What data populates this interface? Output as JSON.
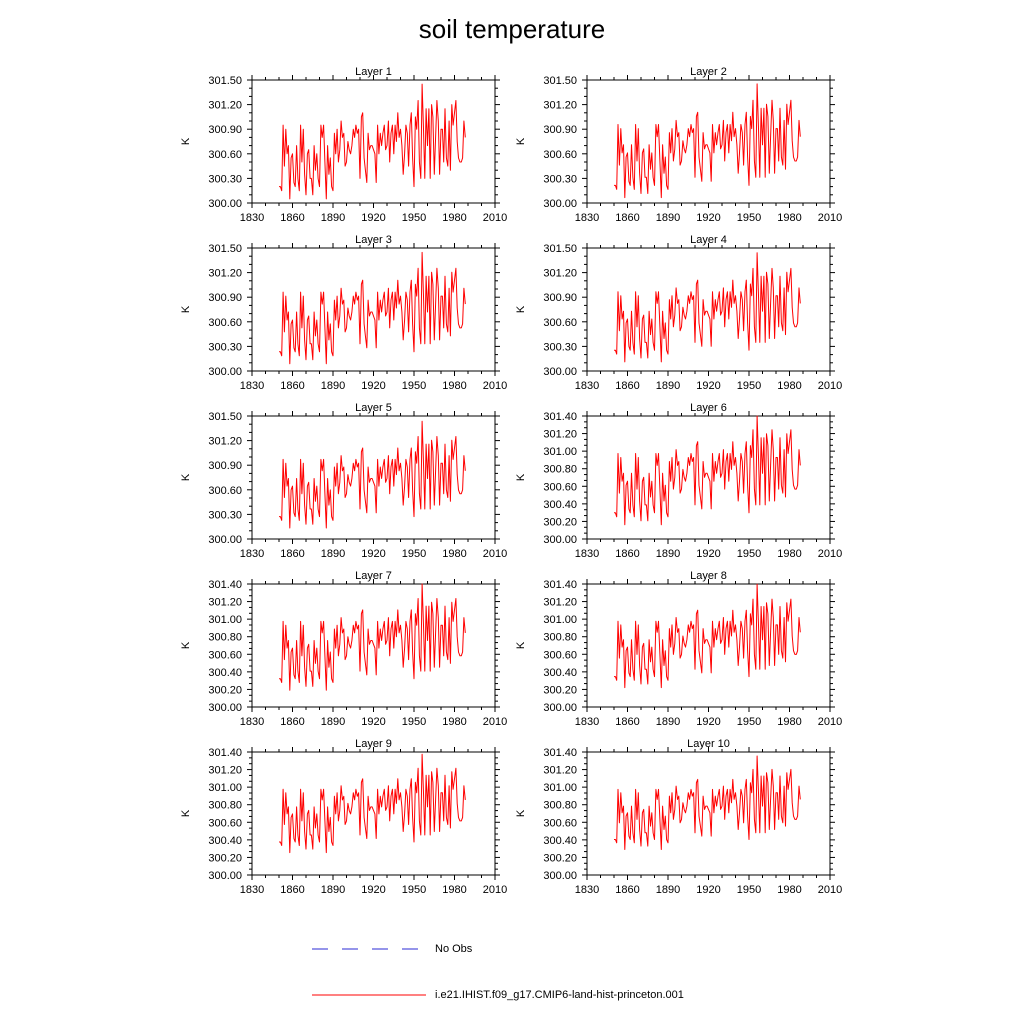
{
  "figure": {
    "title": "soil temperature",
    "legend": [
      {
        "label": "No Obs",
        "color": "#2b2bd6",
        "style": "dashed"
      },
      {
        "label": "i.e21.IHIST.f09_g17.CMIP6-land-hist-princeton.001",
        "color": "#ff0000",
        "style": "solid"
      }
    ]
  },
  "chart_data": {
    "type": "line",
    "x_ticks": [
      1830,
      1860,
      1890,
      1920,
      1950,
      1980,
      2010
    ],
    "xlim": [
      1830,
      2010
    ],
    "x": [
      1850,
      1851,
      1852,
      1853,
      1854,
      1855,
      1856,
      1857,
      1858,
      1859,
      1860,
      1861,
      1862,
      1863,
      1864,
      1865,
      1866,
      1867,
      1868,
      1869,
      1870,
      1871,
      1872,
      1873,
      1874,
      1875,
      1876,
      1877,
      1878,
      1879,
      1880,
      1881,
      1882,
      1883,
      1884,
      1885,
      1886,
      1887,
      1888,
      1889,
      1890,
      1891,
      1892,
      1893,
      1894,
      1895,
      1896,
      1897,
      1898,
      1899,
      1900,
      1901,
      1902,
      1903,
      1904,
      1905,
      1906,
      1907,
      1908,
      1909,
      1910,
      1911,
      1912,
      1913,
      1914,
      1915,
      1916,
      1917,
      1918,
      1919,
      1920,
      1921,
      1922,
      1923,
      1924,
      1925,
      1926,
      1927,
      1928,
      1929,
      1930,
      1931,
      1932,
      1933,
      1934,
      1935,
      1936,
      1937,
      1938,
      1939,
      1940,
      1941,
      1942,
      1943,
      1944,
      1945,
      1946,
      1947,
      1948,
      1949,
      1950,
      1951,
      1952,
      1953,
      1954,
      1955,
      1956,
      1957,
      1958,
      1959,
      1960,
      1961,
      1962,
      1963,
      1964,
      1965,
      1966,
      1967,
      1968,
      1969,
      1970,
      1971,
      1972,
      1973,
      1974,
      1975,
      1976,
      1977,
      1978,
      1979,
      1980,
      1981,
      1982,
      1983,
      1984,
      1985,
      1986,
      1987,
      1988
    ],
    "base": [
      300.2,
      300.2,
      300.15,
      300.95,
      300.45,
      300.9,
      300.6,
      300.7,
      300.05,
      300.55,
      300.6,
      300.25,
      300.2,
      300.7,
      300.3,
      300.15,
      300.95,
      300.5,
      300.9,
      300.35,
      300.1,
      300.6,
      300.65,
      300.3,
      300.3,
      300.1,
      300.7,
      300.4,
      300.6,
      300.3,
      300.2,
      300.95,
      300.8,
      300.95,
      300.5,
      300.05,
      300.7,
      300.35,
      300.55,
      300.2,
      300.15,
      300.85,
      300.6,
      300.9,
      300.5,
      300.65,
      301.0,
      300.8,
      300.85,
      300.45,
      300.5,
      300.75,
      300.65,
      300.6,
      300.7,
      300.9,
      300.8,
      300.95,
      300.85,
      300.9,
      300.3,
      301.05,
      301.1,
      300.55,
      300.4,
      300.25,
      300.85,
      300.65,
      300.7,
      300.7,
      300.65,
      300.6,
      300.25,
      300.95,
      300.6,
      300.85,
      300.7,
      300.85,
      300.95,
      300.65,
      300.7,
      301.0,
      300.5,
      300.85,
      300.95,
      300.6,
      300.95,
      300.75,
      301.1,
      300.8,
      300.9,
      300.7,
      300.35,
      300.6,
      300.95,
      300.85,
      300.45,
      300.95,
      301.1,
      300.55,
      300.2,
      301.05,
      300.9,
      301.25,
      300.5,
      300.3,
      301.45,
      300.9,
      300.3,
      301.15,
      300.7,
      301.15,
      300.3,
      301.2,
      301.05,
      300.35,
      300.8,
      301.25,
      301.0,
      300.35,
      300.9,
      300.9,
      300.5,
      301.15,
      300.55,
      300.45,
      301.0,
      300.4,
      301.2,
      300.95,
      301.1,
      301.25,
      300.75,
      300.55,
      300.5,
      300.5,
      300.55,
      301.0,
      300.8,
      301.25,
      300.5
    ],
    "subplots": [
      {
        "title": "Layer 1",
        "ylabel": "K",
        "ylim": [
          300.0,
          301.5
        ],
        "y_ticks": [
          "300.00",
          "300.30",
          "300.60",
          "300.90",
          "301.20",
          "301.50"
        ],
        "variability": 1.0,
        "trend": 0.0
      },
      {
        "title": "Layer 2",
        "ylabel": "K",
        "ylim": [
          300.0,
          301.5
        ],
        "y_ticks": [
          "300.00",
          "300.30",
          "300.60",
          "300.90",
          "301.20",
          "301.50"
        ],
        "variability": 0.99,
        "trend": 0.01
      },
      {
        "title": "Layer 3",
        "ylabel": "K",
        "ylim": [
          300.0,
          301.5
        ],
        "y_ticks": [
          "300.00",
          "300.30",
          "300.60",
          "300.90",
          "301.20",
          "301.50"
        ],
        "variability": 0.97,
        "trend": 0.02
      },
      {
        "title": "Layer 4",
        "ylabel": "K",
        "ylim": [
          300.0,
          301.5
        ],
        "y_ticks": [
          "300.00",
          "300.30",
          "300.60",
          "300.90",
          "301.20",
          "301.50"
        ],
        "variability": 0.95,
        "trend": 0.03
      },
      {
        "title": "Layer 5",
        "ylabel": "K",
        "ylim": [
          300.0,
          301.5
        ],
        "y_ticks": [
          "300.00",
          "300.30",
          "300.60",
          "300.90",
          "301.20",
          "301.50"
        ],
        "variability": 0.93,
        "trend": 0.04
      },
      {
        "title": "Layer 6",
        "ylabel": "K",
        "ylim": [
          300.0,
          301.4
        ],
        "y_ticks": [
          "300.00",
          "300.20",
          "300.40",
          "300.60",
          "300.80",
          "301.00",
          "301.20",
          "301.40"
        ],
        "variability": 0.9,
        "trend": 0.05
      },
      {
        "title": "Layer 7",
        "ylabel": "K",
        "ylim": [
          300.0,
          301.4
        ],
        "y_ticks": [
          "300.00",
          "300.20",
          "300.40",
          "300.60",
          "300.80",
          "301.00",
          "301.20",
          "301.40"
        ],
        "variability": 0.87,
        "trend": 0.06
      },
      {
        "title": "Layer 8",
        "ylabel": "K",
        "ylim": [
          300.0,
          301.4
        ],
        "y_ticks": [
          "300.00",
          "300.20",
          "300.40",
          "300.60",
          "300.80",
          "301.00",
          "301.20",
          "301.40"
        ],
        "variability": 0.84,
        "trend": 0.07
      },
      {
        "title": "Layer 9",
        "ylabel": "K",
        "ylim": [
          300.0,
          301.4
        ],
        "y_ticks": [
          "300.00",
          "300.20",
          "300.40",
          "300.60",
          "300.80",
          "301.00",
          "301.20",
          "301.40"
        ],
        "variability": 0.8,
        "trend": 0.08
      },
      {
        "title": "Layer 10",
        "ylabel": "K",
        "ylim": [
          300.0,
          301.4
        ],
        "y_ticks": [
          "300.00",
          "300.20",
          "300.40",
          "300.60",
          "300.80",
          "301.00",
          "301.20",
          "301.40"
        ],
        "variability": 0.76,
        "trend": 0.09
      }
    ]
  }
}
